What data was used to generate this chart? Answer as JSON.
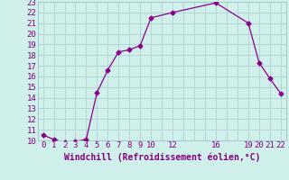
{
  "xlabel": "Windchill (Refroidissement éolien,°C)",
  "x_data": [
    0,
    1,
    2,
    3,
    4,
    5,
    6,
    7,
    8,
    9,
    10,
    12,
    16,
    19,
    20,
    21,
    22
  ],
  "y_data": [
    10.5,
    10.1,
    9.8,
    9.9,
    10.1,
    14.5,
    16.6,
    18.3,
    18.5,
    18.9,
    21.5,
    22.0,
    22.9,
    21.0,
    17.3,
    15.8,
    14.4
  ],
  "line_color": "#8B008B",
  "marker": "D",
  "markersize": 2.5,
  "linewidth": 0.9,
  "background_color": "#cff0eb",
  "grid_color": "#aacccc",
  "ylim": [
    10,
    23
  ],
  "xlim": [
    -0.5,
    22.5
  ],
  "yticks": [
    10,
    11,
    12,
    13,
    14,
    15,
    16,
    17,
    18,
    19,
    20,
    21,
    22,
    23
  ],
  "xticks": [
    0,
    1,
    2,
    3,
    4,
    5,
    6,
    7,
    8,
    9,
    10,
    12,
    16,
    19,
    20,
    21,
    22
  ],
  "all_xticks": [
    0,
    1,
    2,
    3,
    4,
    5,
    6,
    7,
    8,
    9,
    10,
    11,
    12,
    13,
    14,
    15,
    16,
    17,
    18,
    19,
    20,
    21,
    22
  ],
  "label_color": "#800080",
  "label_fontsize": 6.5,
  "xlabel_fontsize": 7.0
}
